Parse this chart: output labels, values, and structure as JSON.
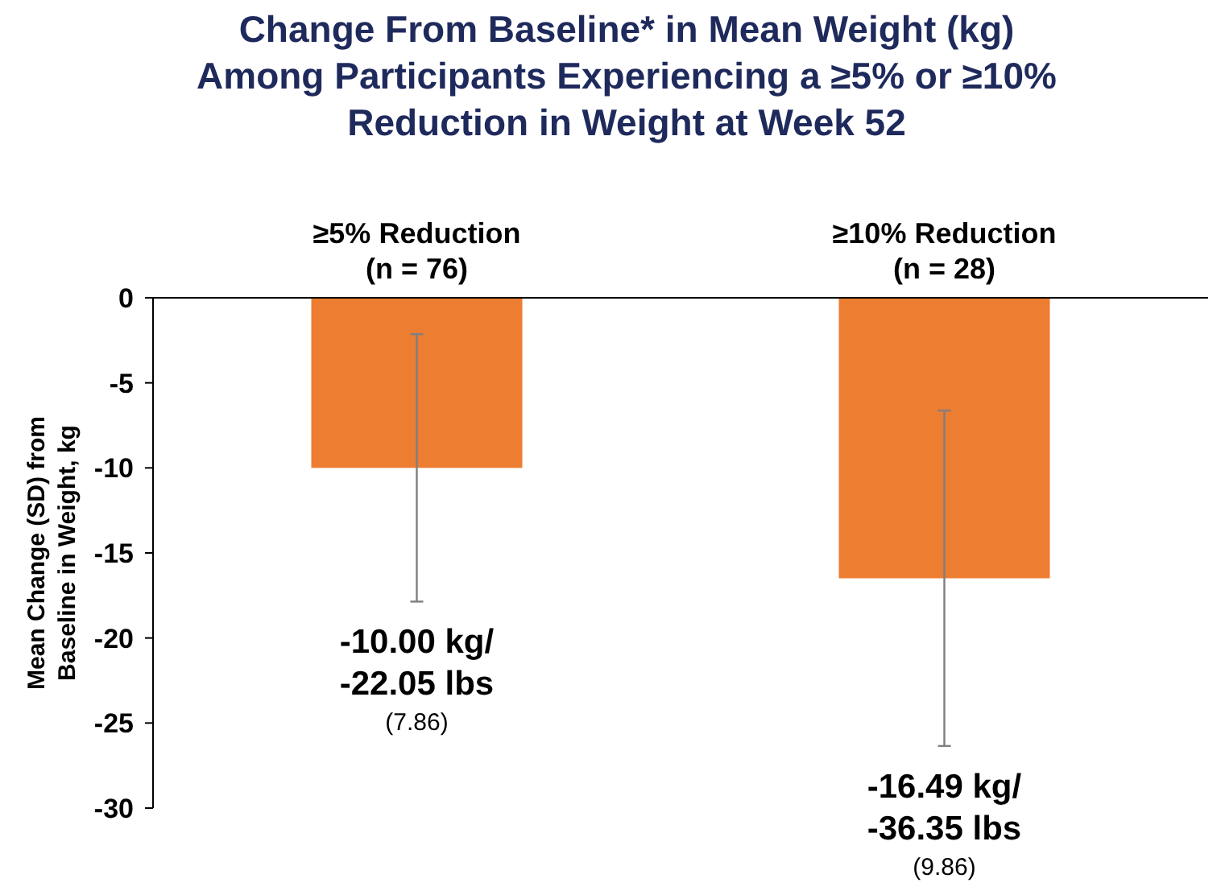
{
  "chart_data": {
    "type": "bar",
    "title": "Change From Baseline* in Mean Weight (kg)\nAmong Participants Experiencing a ≥5% or ≥10%\nReduction in Weight at Week 52",
    "ylabel": "Mean Change (SD) from\nBaseline in Weight, kg",
    "categories": [
      "≥5% Reduction\n(n = 76)",
      "≥10% Reduction\n(n = 28)"
    ],
    "values": [
      -10.0,
      -16.49
    ],
    "color": "#ed7d31",
    "errors": [
      7.86,
      9.86
    ],
    "annotations": [
      "-10.00 kg/\n-22.05 lbs\n(7.86)",
      "-16.49 kg/\n-36.35 lbs\n(9.86)"
    ],
    "ylim": [
      -30,
      0
    ],
    "yticks": [
      -30,
      -25,
      -20,
      -15,
      -10,
      -5,
      0
    ],
    "grid": false
  }
}
